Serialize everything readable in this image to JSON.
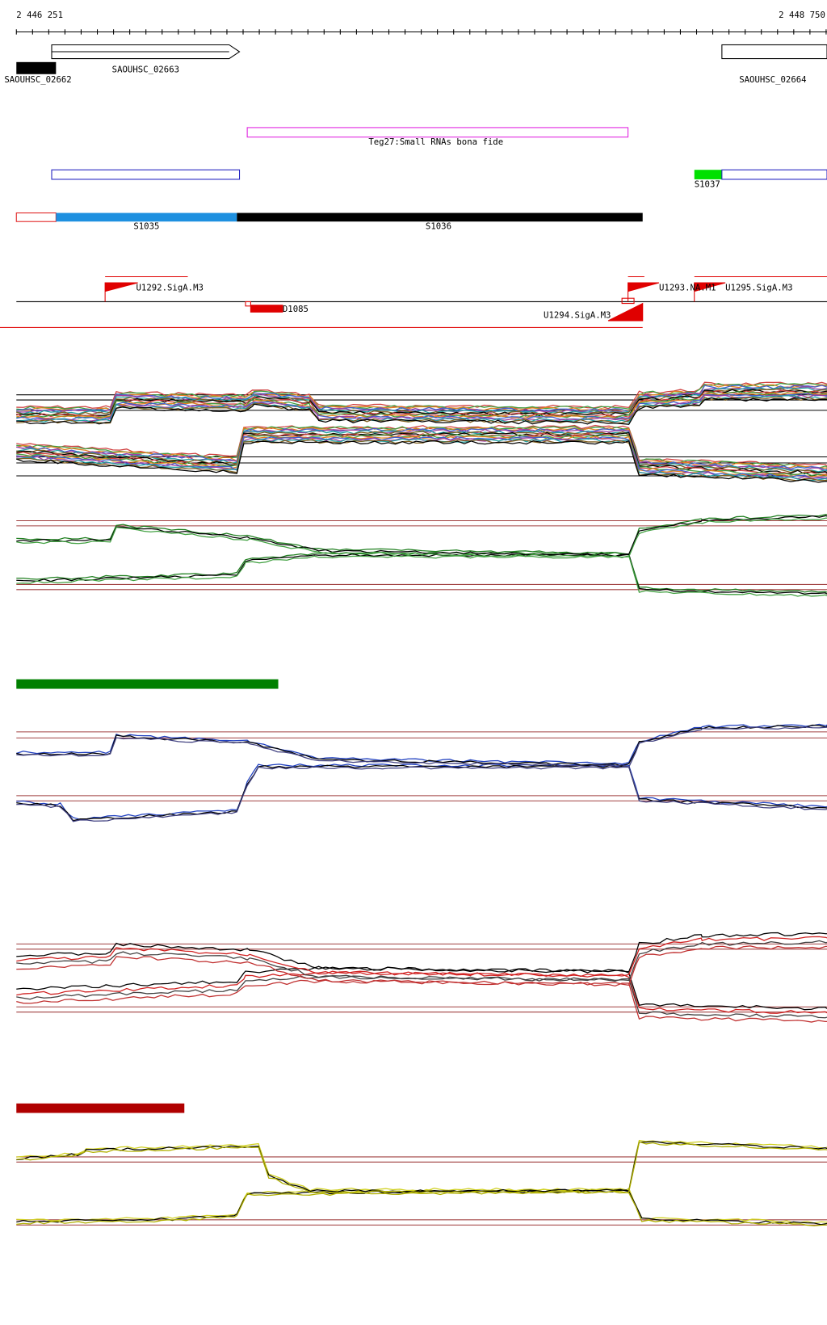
{
  "ruler": {
    "start": "2 446 251",
    "end": "2 448 750"
  },
  "genes": [
    {
      "label": "SAOUHSC_02662"
    },
    {
      "label": "SAOUHSC_02663"
    },
    {
      "label": "SAOUHSC_02664"
    }
  ],
  "srna": {
    "label": "Teg27:Small RNAs bona fide"
  },
  "segments": [
    {
      "label": "S1037"
    },
    {
      "label": "S1035"
    },
    {
      "label": "S1036"
    }
  ],
  "promoters": [
    {
      "label": "U1292.SigA.M3"
    },
    {
      "label": "U1293.NA.M1"
    },
    {
      "label": "U1295.SigA.M3"
    },
    {
      "label": "U1294.SigA.M3"
    }
  ],
  "terminators": [
    {
      "label": "D1085"
    }
  ]
}
